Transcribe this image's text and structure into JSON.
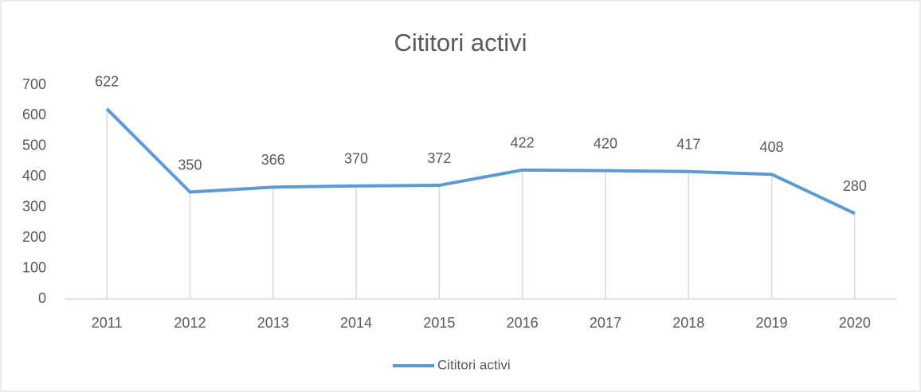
{
  "chart_data": {
    "type": "line",
    "title": "Cititori activi",
    "categories": [
      "2011",
      "2012",
      "2013",
      "2014",
      "2015",
      "2016",
      "2017",
      "2018",
      "2019",
      "2020"
    ],
    "series": [
      {
        "name": "Cititori activi",
        "color": "#5b9bd5",
        "values": [
          622,
          350,
          366,
          370,
          372,
          422,
          420,
          417,
          408,
          280
        ]
      }
    ],
    "ylim": [
      0,
      700
    ],
    "yticks": [
      0,
      100,
      200,
      300,
      400,
      500,
      600,
      700
    ],
    "data_labels": true,
    "drop_lines": true,
    "legend": "bottom"
  }
}
